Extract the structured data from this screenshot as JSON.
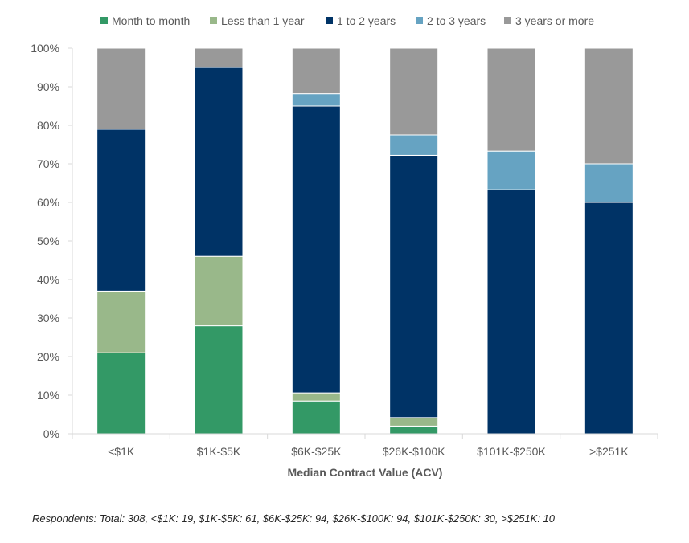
{
  "chart_data": {
    "type": "bar",
    "stacked": true,
    "categories": [
      "<$1K",
      "$1K-$5K",
      "$6K-$25K",
      "$26K-$100K",
      "$101K-$250K",
      ">$251K"
    ],
    "series": [
      {
        "name": "Month to month",
        "color": "#339966",
        "values": [
          21,
          28,
          8.5,
          2,
          0,
          0
        ]
      },
      {
        "name": "Less than 1 year",
        "color": "#99B88A",
        "values": [
          16,
          18,
          2.1,
          2.2,
          0,
          0
        ]
      },
      {
        "name": "1 to 2 years",
        "color": "#003366",
        "values": [
          42,
          49,
          74.4,
          68,
          63.3,
          60
        ]
      },
      {
        "name": "2 to 3 years",
        "color": "#66A3C2",
        "values": [
          0,
          0,
          3.2,
          5.3,
          10,
          10
        ]
      },
      {
        "name": "3 years or more",
        "color": "#999999",
        "values": [
          21,
          5,
          11.8,
          22.5,
          26.7,
          30
        ]
      }
    ],
    "yticks": [
      "0%",
      "10%",
      "20%",
      "30%",
      "40%",
      "50%",
      "60%",
      "70%",
      "80%",
      "90%",
      "100%"
    ],
    "ylim": [
      0,
      100
    ],
    "xlabel": "Median Contract Value (ACV)",
    "ylabel": "",
    "legend_position": "top",
    "grid": false
  },
  "footnote": "Respondents: Total: 308, <$1K: 19, $1K-$5K: 61, $6K-$25K: 94, $26K-$100K: 94, $101K-$250K: 30, >$251K: 10"
}
